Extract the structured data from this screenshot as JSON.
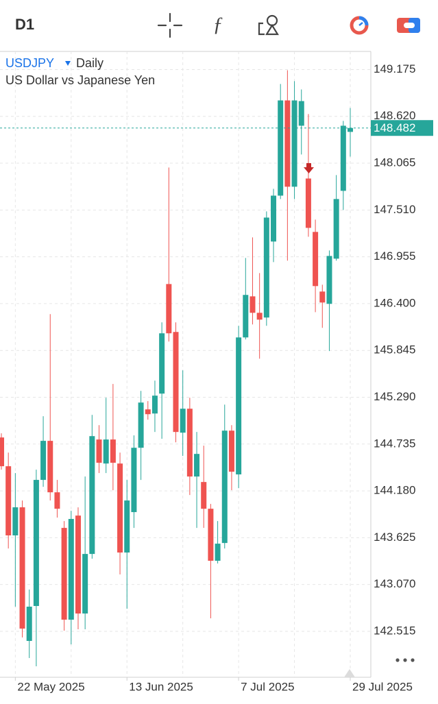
{
  "toolbar": {
    "timeframe": "D1"
  },
  "chart_data": {
    "type": "candlestick",
    "symbol": "USDJPY",
    "period": "Daily",
    "subtitle": "US Dollar vs Japanese Yen",
    "categories": [
      null,
      null,
      "22 May 2025",
      null,
      null,
      null,
      null,
      null,
      null,
      null,
      null,
      null,
      null,
      null,
      null,
      null,
      null,
      null,
      "13 Jun 2025",
      null,
      null,
      null,
      null,
      null,
      null,
      null,
      null,
      null,
      null,
      null,
      null,
      null,
      null,
      null,
      "7 Jul 2025",
      null,
      null,
      null,
      null,
      null,
      null,
      null,
      null,
      null,
      null,
      null,
      null,
      null,
      null,
      null,
      "29 Jul 2025"
    ],
    "open": [
      144.813,
      144.472,
      143.652,
      143.985,
      142.401,
      142.815,
      144.31,
      144.773,
      144.163,
      143.741,
      142.653,
      143.887,
      142.726,
      143.432,
      144.789,
      144.504,
      144.789,
      144.504,
      143.449,
      143.928,
      144.691,
      145.146,
      145.097,
      145.333,
      146.632,
      146.064,
      144.87,
      145.154,
      144.35,
      144.285,
      143.968,
      143.351,
      143.562,
      144.894,
      144.375,
      145.999,
      146.486,
      146.291,
      146.235,
      147.136,
      147.68,
      148.809,
      147.786,
      148.509,
      147.883,
      147.25,
      146.543,
      146.397,
      146.933,
      147.737,
      148.436
    ],
    "high": [
      144.862,
      144.634,
      144.391,
      144.066,
      143.01,
      144.431,
      145.065,
      146.275,
      144.31,
      143.822,
      143.944,
      143.985,
      144.35,
      145.081,
      144.959,
      145.284,
      145.447,
      144.634,
      144.31,
      144.838,
      145.365,
      145.244,
      145.487,
      146.178,
      148.013,
      146.178,
      145.609,
      145.284,
      144.878,
      144.716,
      144.025,
      143.822,
      145.203,
      144.959,
      146.137,
      146.941,
      147.185,
      146.762,
      147.493,
      147.761,
      149.004,
      149.167,
      149.037,
      148.939,
      148.647,
      147.396,
      146.624,
      147.03,
      147.924,
      148.566,
      148.72
    ],
    "low": [
      144.431,
      143.497,
      142.807,
      142.442,
      142.198,
      142.1,
      144.228,
      144.066,
      143.863,
      142.523,
      142.36,
      142.539,
      142.539,
      143.376,
      144.391,
      144.391,
      144.188,
      143.189,
      142.783,
      143.741,
      144.31,
      145.024,
      144.878,
      144.797,
      145.95,
      144.756,
      144.594,
      144.131,
      143.741,
      143.741,
      142.669,
      143.319,
      143.497,
      144.188,
      144.212,
      145.975,
      146.153,
      145.747,
      146.137,
      146.892,
      147.64,
      146.909,
      147.64,
      148.168,
      147.193,
      146.299,
      146.113,
      145.837,
      146.909,
      147.51,
      148.143
    ],
    "close": [
      144.472,
      143.652,
      143.985,
      142.547,
      142.807,
      144.31,
      144.773,
      144.163,
      143.968,
      142.653,
      143.847,
      142.726,
      143.432,
      144.829,
      144.513,
      144.789,
      144.513,
      143.449,
      144.066,
      144.691,
      145.227,
      145.089,
      145.309,
      146.048,
      146.048,
      144.878,
      145.154,
      144.35,
      144.618,
      143.968,
      143.351,
      143.554,
      144.894,
      144.407,
      145.999,
      146.503,
      146.291,
      146.21,
      147.42,
      147.68,
      148.809,
      147.786,
      148.809,
      148.801,
      147.298,
      146.608,
      146.413,
      146.965,
      147.64,
      148.509,
      148.482
    ],
    "up_color": "#26a69a",
    "down_color": "#ef5350",
    "current_price": 148.482,
    "ylim": [
      141.97,
      149.39
    ],
    "yticks": [
      142.515,
      {
        "value": 143.07,
        "label": "143.070"
      },
      143.625,
      {
        "value": 144.18,
        "label": "144.180"
      },
      144.735,
      {
        "value": 145.29,
        "label": "145.290"
      },
      145.845,
      {
        "value": 146.4,
        "label": "146.400"
      },
      146.955,
      {
        "value": 147.51,
        "label": "147.510"
      },
      148.065,
      {
        "value": 148.62,
        "label": "148.620"
      },
      149.175
    ],
    "grid": true
  }
}
